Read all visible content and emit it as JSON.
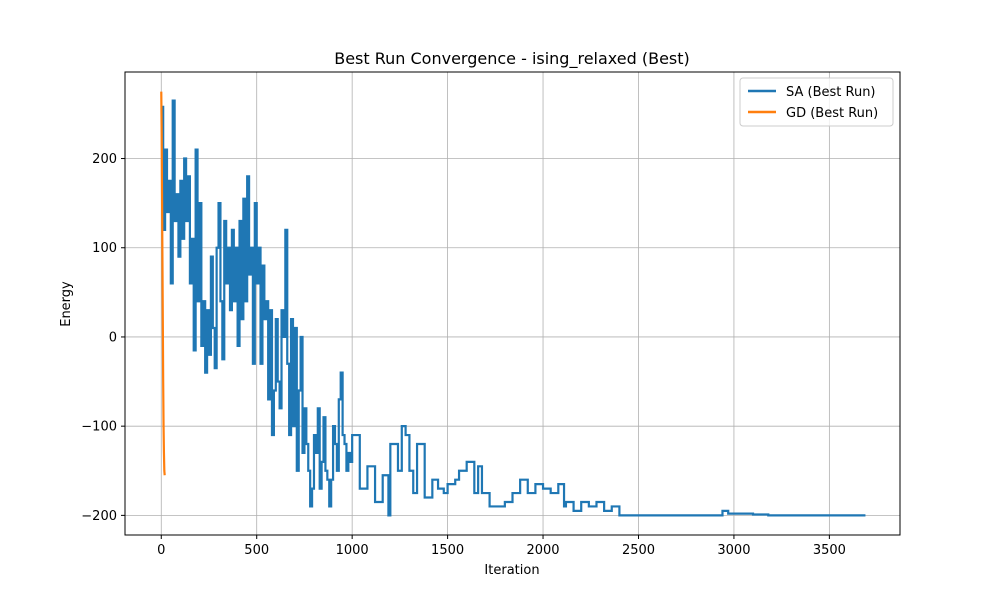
{
  "chart_data": {
    "type": "line",
    "title": "Best Run Convergence - ising_relaxed (Best)",
    "xlabel": "Iteration",
    "ylabel": "Energy",
    "xlim": [
      -190,
      3870
    ],
    "ylim": [
      -222,
      297
    ],
    "xticks": [
      0,
      500,
      1000,
      1500,
      2000,
      2500,
      3000,
      3500
    ],
    "yticks": [
      -200,
      -100,
      0,
      100,
      200
    ],
    "grid": true,
    "legend_position": "top-right",
    "series": [
      {
        "name": "SA (Best Run)",
        "color": "#1f77b4",
        "step": true,
        "x": [
          0,
          10,
          20,
          30,
          40,
          50,
          60,
          70,
          80,
          90,
          100,
          110,
          120,
          130,
          140,
          150,
          160,
          170,
          180,
          190,
          200,
          210,
          220,
          230,
          240,
          250,
          260,
          270,
          280,
          290,
          300,
          310,
          320,
          330,
          340,
          350,
          360,
          370,
          380,
          390,
          400,
          410,
          420,
          430,
          440,
          450,
          460,
          470,
          480,
          490,
          500,
          510,
          520,
          530,
          540,
          550,
          560,
          570,
          580,
          590,
          600,
          610,
          620,
          630,
          640,
          650,
          660,
          670,
          680,
          690,
          700,
          710,
          720,
          730,
          740,
          750,
          760,
          770,
          780,
          790,
          800,
          810,
          820,
          830,
          840,
          850,
          860,
          870,
          880,
          890,
          900,
          910,
          920,
          930,
          940,
          950,
          960,
          970,
          980,
          990,
          1000,
          1040,
          1080,
          1120,
          1160,
          1190,
          1200,
          1240,
          1260,
          1280,
          1300,
          1320,
          1340,
          1380,
          1420,
          1450,
          1480,
          1500,
          1540,
          1560,
          1600,
          1640,
          1660,
          1680,
          1720,
          1760,
          1800,
          1840,
          1880,
          1920,
          1960,
          2000,
          2040,
          2080,
          2110,
          2120,
          2160,
          2200,
          2240,
          2280,
          2320,
          2360,
          2400,
          2600,
          2800,
          2940,
          2950,
          2970,
          3000,
          3100,
          3180,
          3200,
          3689
        ],
        "y": [
          258,
          120,
          210,
          140,
          175,
          60,
          265,
          130,
          160,
          90,
          175,
          110,
          200,
          130,
          180,
          60,
          110,
          -15,
          210,
          40,
          150,
          -10,
          40,
          -40,
          30,
          -20,
          90,
          10,
          -35,
          100,
          150,
          40,
          -25,
          130,
          60,
          100,
          30,
          120,
          40,
          100,
          -10,
          130,
          20,
          155,
          40,
          180,
          70,
          100,
          -30,
          150,
          60,
          100,
          -30,
          80,
          20,
          40,
          -70,
          30,
          -110,
          -60,
          20,
          -50,
          -80,
          30,
          0,
          120,
          -30,
          -110,
          20,
          -100,
          10,
          -150,
          -60,
          0,
          -130,
          -80,
          -120,
          -150,
          -190,
          -170,
          -110,
          -130,
          -80,
          -170,
          -140,
          -90,
          -150,
          -160,
          -190,
          -160,
          -100,
          -120,
          -150,
          -70,
          -40,
          -110,
          -120,
          -150,
          -130,
          -140,
          -110,
          -170,
          -145,
          -185,
          -155,
          -200,
          -120,
          -150,
          -100,
          -110,
          -150,
          -175,
          -120,
          -180,
          -160,
          -170,
          -175,
          -165,
          -160,
          -150,
          -140,
          -175,
          -145,
          -175,
          -190,
          -190,
          -185,
          -175,
          -160,
          -175,
          -165,
          -170,
          -175,
          -165,
          -190,
          -185,
          -195,
          -185,
          -190,
          -185,
          -195,
          -190,
          -200,
          -200,
          -200,
          -195,
          -195,
          -198,
          -198,
          -199,
          -200,
          -200,
          -200
        ]
      },
      {
        "name": "GD (Best Run)",
        "color": "#ff7f0e",
        "step": false,
        "x": [
          0,
          2,
          4,
          6,
          8,
          10,
          12,
          14,
          16,
          18
        ],
        "y": [
          275,
          230,
          160,
          90,
          20,
          -50,
          -100,
          -130,
          -150,
          -155
        ]
      }
    ]
  }
}
